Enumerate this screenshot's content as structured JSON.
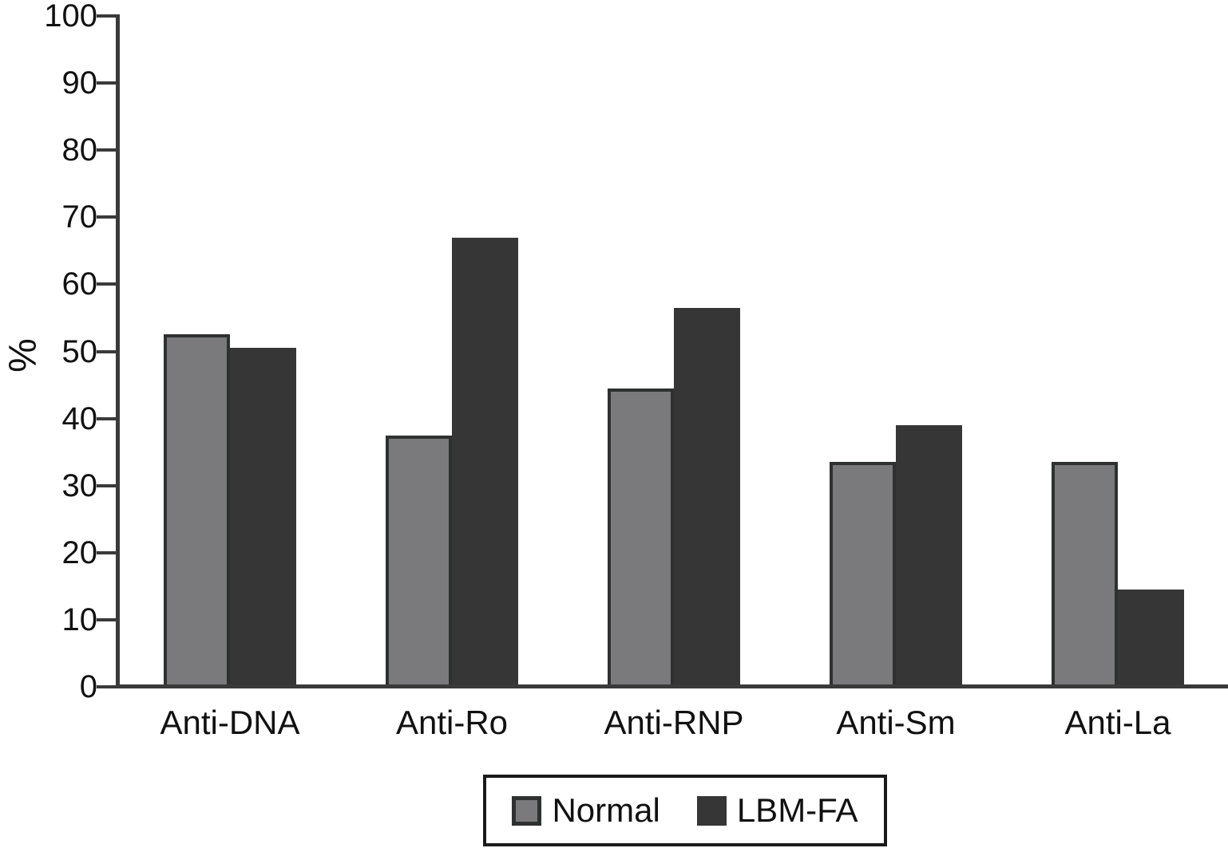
{
  "chart_data": {
    "type": "bar",
    "title": "",
    "categories": [
      "Anti-DNA",
      "Anti-Ro",
      "Anti-RNP",
      "Anti-Sm",
      "Anti-La"
    ],
    "series": [
      {
        "name": "Normal",
        "color": "#7a7a7c",
        "border_color": "#2f3030",
        "border_width": 4,
        "values": [
          52.5,
          37.5,
          44.5,
          33.5,
          33.5
        ]
      },
      {
        "name": "LBM-FA",
        "color": "#363636",
        "border_color": "#363636",
        "border_width": 0,
        "values": [
          50.5,
          67,
          56.5,
          39,
          14.5
        ]
      }
    ],
    "xlabel": "",
    "ylabel": "%",
    "ylim": [
      0,
      100
    ],
    "ytick_step": 10,
    "yticks": [
      0,
      10,
      20,
      30,
      40,
      50,
      60,
      70,
      80,
      90,
      100
    ],
    "grid": false,
    "legend_position": "bottom-center",
    "axis_color": "#3a3a3a",
    "text_color": "#111111",
    "background": "#ffffff"
  }
}
